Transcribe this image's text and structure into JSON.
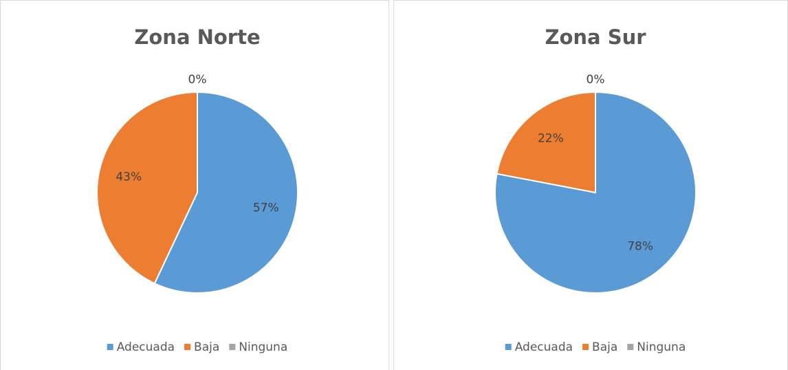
{
  "chart_data": [
    {
      "type": "pie",
      "title": "Zona Norte",
      "categories": [
        "Adecuada",
        "Baja",
        "Ninguna"
      ],
      "values": [
        57,
        43,
        0
      ],
      "value_labels": [
        "57%",
        "43%",
        "0%"
      ],
      "colors": [
        "#5b9bd5",
        "#ed7d31",
        "#a5a5a5"
      ]
    },
    {
      "type": "pie",
      "title": "Zona Sur",
      "categories": [
        "Adecuada",
        "Baja",
        "Ninguna"
      ],
      "values": [
        78,
        22,
        0
      ],
      "value_labels": [
        "78%",
        "22%",
        "0%"
      ],
      "colors": [
        "#5b9bd5",
        "#ed7d31",
        "#a5a5a5"
      ]
    }
  ]
}
